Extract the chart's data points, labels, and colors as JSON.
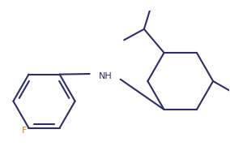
{
  "bg_color": "#ffffff",
  "line_color": "#2d2d6b",
  "label_color_NH": "#2d2d6b",
  "label_color_F": "#cc8800",
  "line_width": 1.5,
  "font_size_NH": 8,
  "font_size_F": 8
}
